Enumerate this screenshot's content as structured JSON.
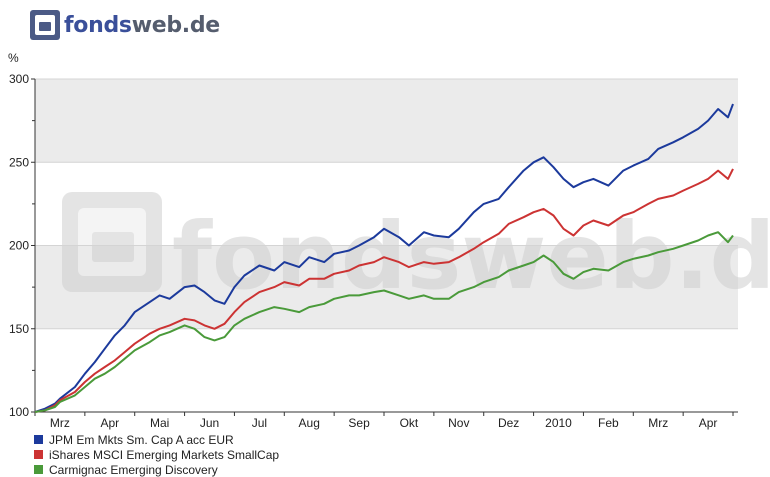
{
  "logo": {
    "brand": "fonds",
    "suffix": "web.de",
    "watermark": "fondsweb.de"
  },
  "chart_data": {
    "type": "line",
    "ylabel": "%",
    "ylim": [
      100,
      300
    ],
    "yticks": [
      100,
      150,
      200,
      250,
      300
    ],
    "shaded_bands": [
      [
        150,
        200
      ],
      [
        250,
        300
      ]
    ],
    "xlim": [
      0,
      14.1
    ],
    "month_labels": [
      "Mrz",
      "Apr",
      "Mai",
      "Jun",
      "Jul",
      "Aug",
      "Sep",
      "Okt",
      "Nov",
      "Dez",
      "2010",
      "Feb",
      "Mrz",
      "Apr"
    ],
    "month_positions": [
      0.5,
      1.5,
      2.5,
      3.5,
      4.5,
      5.5,
      6.5,
      7.5,
      8.5,
      9.5,
      10.5,
      11.5,
      12.5,
      13.5
    ],
    "series": [
      {
        "name": "JPM Em Mkts Sm. Cap A acc EUR",
        "color": "#1c3a9c",
        "x": [
          0,
          0.2,
          0.4,
          0.5,
          0.8,
          1.0,
          1.2,
          1.4,
          1.6,
          1.8,
          2.0,
          2.3,
          2.5,
          2.7,
          3.0,
          3.2,
          3.4,
          3.6,
          3.8,
          4.0,
          4.2,
          4.5,
          4.8,
          5.0,
          5.3,
          5.5,
          5.8,
          6.0,
          6.3,
          6.5,
          6.8,
          7.0,
          7.3,
          7.5,
          7.8,
          8.0,
          8.3,
          8.5,
          8.8,
          9.0,
          9.3,
          9.5,
          9.8,
          10.0,
          10.2,
          10.4,
          10.6,
          10.8,
          11.0,
          11.2,
          11.5,
          11.8,
          12.0,
          12.3,
          12.5,
          12.8,
          13.0,
          13.3,
          13.5,
          13.7,
          13.9,
          14.0
        ],
        "values": [
          100,
          102,
          105,
          108,
          115,
          123,
          130,
          138,
          146,
          152,
          160,
          166,
          170,
          168,
          175,
          176,
          172,
          167,
          165,
          175,
          182,
          188,
          185,
          190,
          187,
          193,
          190,
          195,
          197,
          200,
          205,
          210,
          205,
          200,
          208,
          206,
          205,
          210,
          220,
          225,
          228,
          235,
          245,
          250,
          253,
          247,
          240,
          235,
          238,
          240,
          236,
          245,
          248,
          252,
          258,
          262,
          265,
          270,
          275,
          282,
          277,
          285
        ]
      },
      {
        "name": "iShares MSCI Emerging Markets SmallCap",
        "color": "#cc3333",
        "x": [
          0,
          0.2,
          0.4,
          0.5,
          0.8,
          1.0,
          1.2,
          1.4,
          1.6,
          1.8,
          2.0,
          2.3,
          2.5,
          2.7,
          3.0,
          3.2,
          3.4,
          3.6,
          3.8,
          4.0,
          4.2,
          4.5,
          4.8,
          5.0,
          5.3,
          5.5,
          5.8,
          6.0,
          6.3,
          6.5,
          6.8,
          7.0,
          7.3,
          7.5,
          7.8,
          8.0,
          8.3,
          8.5,
          8.8,
          9.0,
          9.3,
          9.5,
          9.8,
          10.0,
          10.2,
          10.4,
          10.6,
          10.8,
          11.0,
          11.2,
          11.5,
          11.8,
          12.0,
          12.3,
          12.5,
          12.8,
          13.0,
          13.3,
          13.5,
          13.7,
          13.9,
          14.0
        ],
        "values": [
          100,
          101,
          104,
          107,
          112,
          118,
          123,
          127,
          131,
          136,
          141,
          147,
          150,
          152,
          156,
          155,
          152,
          150,
          153,
          160,
          166,
          172,
          175,
          178,
          176,
          180,
          180,
          183,
          185,
          188,
          190,
          193,
          190,
          187,
          190,
          189,
          190,
          193,
          198,
          202,
          207,
          213,
          217,
          220,
          222,
          218,
          210,
          206,
          212,
          215,
          212,
          218,
          220,
          225,
          228,
          230,
          233,
          237,
          240,
          245,
          240,
          246
        ]
      },
      {
        "name": "Carmignac Emerging Discovery",
        "color": "#4a9a3a",
        "x": [
          0,
          0.2,
          0.4,
          0.5,
          0.8,
          1.0,
          1.2,
          1.4,
          1.6,
          1.8,
          2.0,
          2.3,
          2.5,
          2.7,
          3.0,
          3.2,
          3.4,
          3.6,
          3.8,
          4.0,
          4.2,
          4.5,
          4.8,
          5.0,
          5.3,
          5.5,
          5.8,
          6.0,
          6.3,
          6.5,
          6.8,
          7.0,
          7.3,
          7.5,
          7.8,
          8.0,
          8.3,
          8.5,
          8.8,
          9.0,
          9.3,
          9.5,
          9.8,
          10.0,
          10.2,
          10.4,
          10.6,
          10.8,
          11.0,
          11.2,
          11.5,
          11.8,
          12.0,
          12.3,
          12.5,
          12.8,
          13.0,
          13.3,
          13.5,
          13.7,
          13.9,
          14.0
        ],
        "values": [
          100,
          101,
          103,
          106,
          110,
          115,
          120,
          123,
          127,
          132,
          137,
          142,
          146,
          148,
          152,
          150,
          145,
          143,
          145,
          152,
          156,
          160,
          163,
          162,
          160,
          163,
          165,
          168,
          170,
          170,
          172,
          173,
          170,
          168,
          170,
          168,
          168,
          172,
          175,
          178,
          181,
          185,
          188,
          190,
          194,
          190,
          183,
          180,
          184,
          186,
          185,
          190,
          192,
          194,
          196,
          198,
          200,
          203,
          206,
          208,
          202,
          206
        ]
      }
    ]
  }
}
